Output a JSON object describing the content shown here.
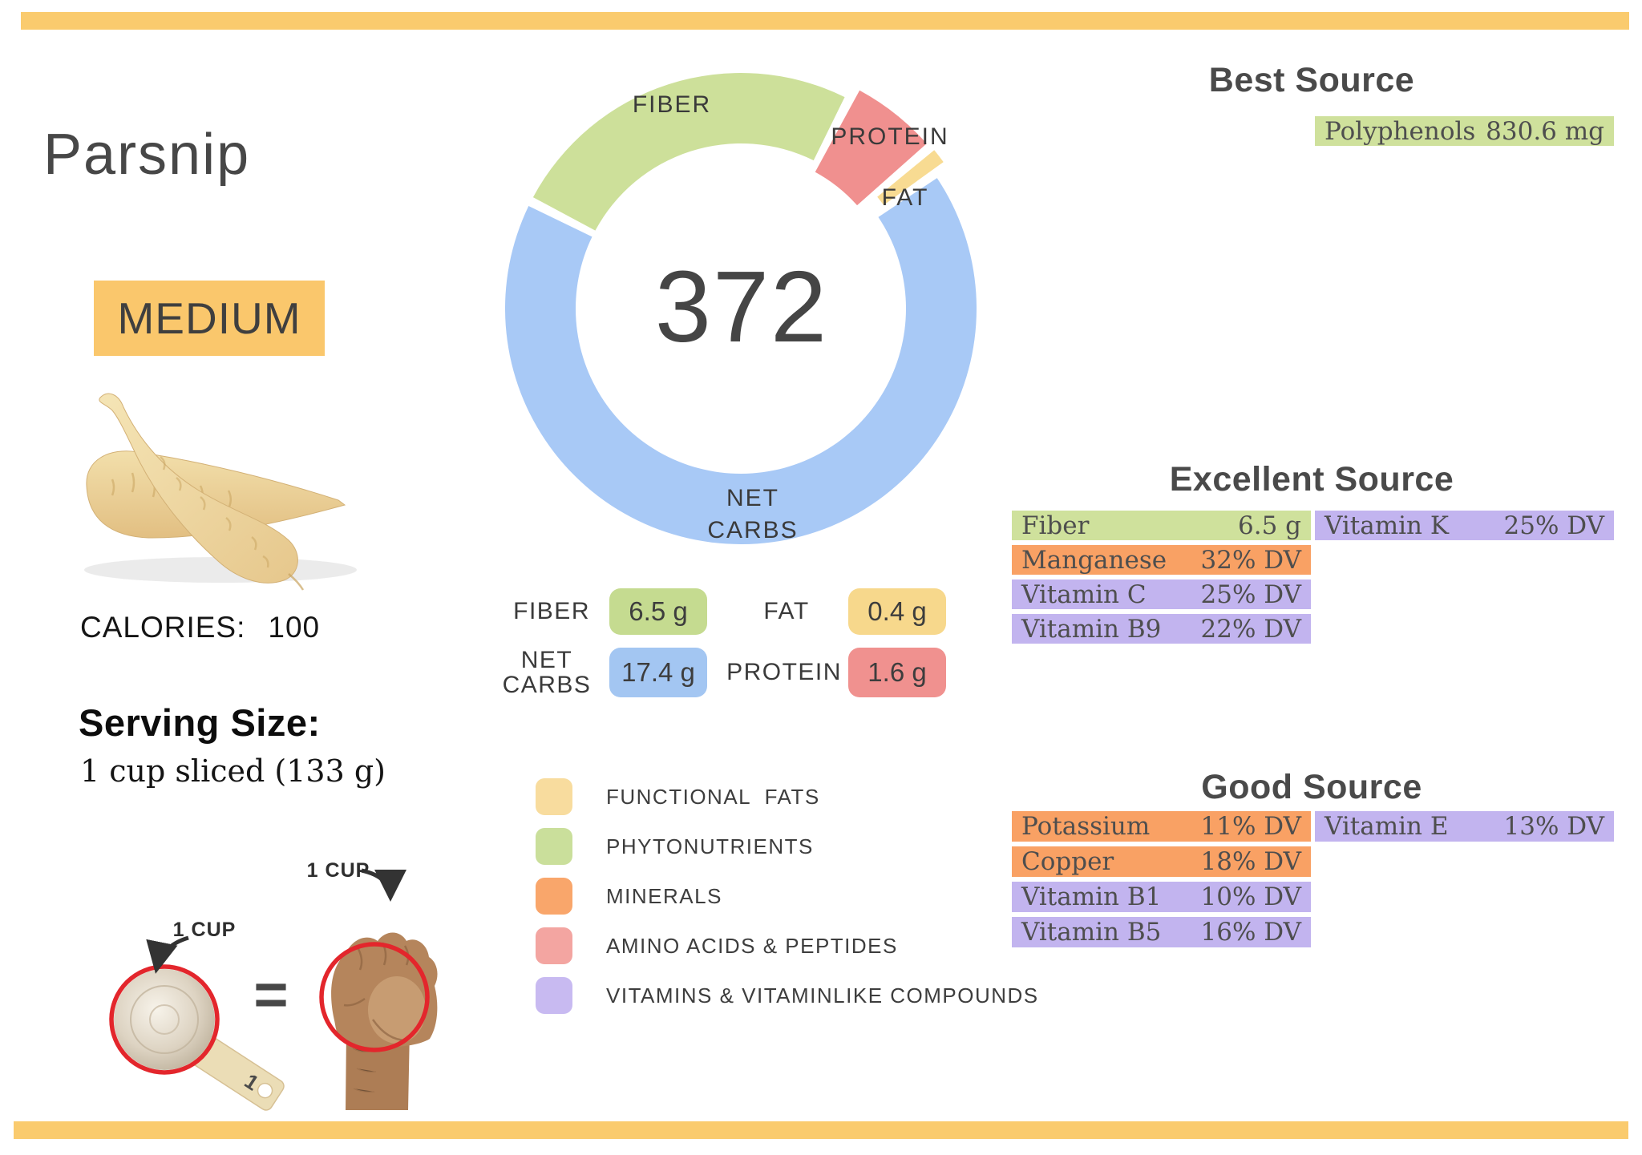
{
  "header": {
    "title": "Parsnip",
    "badge": "MEDIUM"
  },
  "left": {
    "calories_label": "CALORIES:",
    "calories_value": "100",
    "serving_heading": "Serving Size:",
    "serving_text": "1 cup sliced (133 g)",
    "cup_label": "1 CUP",
    "fist_label": "1 CUP",
    "equals_sign": "=",
    "cup_handle_number": "1"
  },
  "colors": {
    "accent_bar": "#facb6e",
    "badge_bg": "#fac76c",
    "text_dark": "#3c3c3c",
    "heading_gray": "#4a4a4a",
    "rows": {
      "green": "#cfe19c",
      "orange": "#f9a164",
      "purple": "#c2b4ef"
    }
  },
  "chart_data": [
    {
      "type": "pie",
      "title": "Macronutrient donut",
      "center_label": "372",
      "labels": [
        "FIBER",
        "PROTEIN",
        "FAT",
        "NET CARBS"
      ],
      "values": [
        6.5,
        1.6,
        0.4,
        17.4
      ],
      "unit": "g",
      "colors": [
        "#cde09a",
        "#f0908f",
        "#f8db92",
        "#a8c9f6"
      ],
      "start_angle_deg": -63,
      "gap_deg": 2.4,
      "exploded": [
        false,
        true,
        true,
        false
      ]
    },
    {
      "type": "bar",
      "title": "Best Source",
      "rows": [
        {
          "name": "Polyphenols",
          "value": "830.6 mg",
          "color": "green",
          "col": 1
        }
      ]
    },
    {
      "type": "bar",
      "title": "Excellent Source",
      "rows": [
        {
          "name": "Fiber",
          "value": "6.5 g",
          "color": "green",
          "col": 0
        },
        {
          "name": "Vitamin K",
          "value": "25% DV",
          "color": "purple",
          "col": 1
        },
        {
          "name": "Manganese",
          "value": "32% DV",
          "color": "orange",
          "col": 0
        },
        {
          "name": "Vitamin C",
          "value": "25% DV",
          "color": "purple",
          "col": 0
        },
        {
          "name": "Vitamin B9",
          "value": "22% DV",
          "color": "purple",
          "col": 0
        }
      ]
    },
    {
      "type": "bar",
      "title": "Good Source",
      "rows": [
        {
          "name": "Potassium",
          "value": "11% DV",
          "color": "orange",
          "col": 0
        },
        {
          "name": "Vitamin E",
          "value": "13% DV",
          "color": "purple",
          "col": 1
        },
        {
          "name": "Copper",
          "value": "18% DV",
          "color": "orange",
          "col": 0
        },
        {
          "name": "Vitamin B1",
          "value": "10% DV",
          "color": "purple",
          "col": 0
        },
        {
          "name": "Vitamin B5",
          "value": "16% DV",
          "color": "purple",
          "col": 0
        }
      ]
    }
  ],
  "macros": [
    {
      "label": "FIBER",
      "value": "6.5 g",
      "color": "#c5db90"
    },
    {
      "label": "FAT",
      "value": "0.4 g",
      "color": "#f7d88c"
    },
    {
      "label": "NET CARBS",
      "value": "17.4 g",
      "color": "#a3c6f2"
    },
    {
      "label": "PROTEIN",
      "value": "1.6 g",
      "color": "#f0918f"
    }
  ],
  "legend": [
    {
      "label": "FUNCTIONAL  FATS",
      "color": "#f8dc9e"
    },
    {
      "label": "PHYTONUTRIENTS",
      "color": "#cadf9b"
    },
    {
      "label": "MINERALS",
      "color": "#f9a66b"
    },
    {
      "label": "AMINO ACIDS & PEPTIDES",
      "color": "#f3a5a1"
    },
    {
      "label": "VITAMINS & VITAMINLIKE COMPOUNDS",
      "color": "#c8baf1"
    }
  ]
}
